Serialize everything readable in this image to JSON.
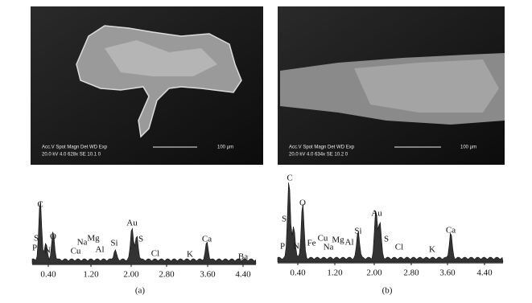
{
  "panels": [
    {
      "sem": {
        "line1": "Acc.V  Spot Magn   Det  WD  Exp",
        "line2": "20.0 kV 4.0   628x    SE   10.1  0",
        "scale": "100 µm"
      },
      "spectrum": {
        "elements": [
          "C",
          "S",
          "P",
          "N",
          "O",
          "Cu",
          "Na",
          "Mg",
          "Al",
          "Si",
          "Au",
          "S",
          "Cl",
          "K",
          "Ca",
          "Ba"
        ],
        "xticks": [
          "0.40",
          "1.20",
          "2.00",
          "2.80",
          "3.60",
          "4.40"
        ]
      },
      "caption": "(a)"
    },
    {
      "sem": {
        "line1": "Acc.V  Spot Magn   Det  WD  Exp",
        "line2": "20.0 kV 4.0   634x    SE   10.2  0",
        "scale": "100 µm"
      },
      "spectrum": {
        "elements": [
          "C",
          "S",
          "P",
          "N",
          "O",
          "Fe",
          "Cu",
          "Na",
          "Mg",
          "Al",
          "Si",
          "Au",
          "S",
          "Cl",
          "K",
          "Ca"
        ],
        "xticks": [
          "0.40",
          "1.20",
          "2.00",
          "2.80",
          "3.60",
          "4.40"
        ]
      },
      "caption": "(b)"
    }
  ]
}
